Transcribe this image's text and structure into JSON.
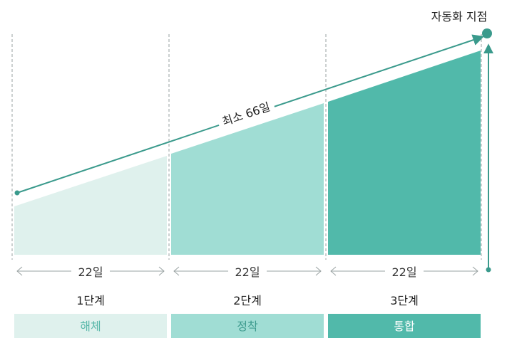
{
  "endpoint_label": "자동화 지점",
  "arrow_label": "최소 66일",
  "stages": [
    {
      "duration": "22일",
      "step": "1단계",
      "name": "해체"
    },
    {
      "duration": "22일",
      "step": "2단계",
      "name": "정착"
    },
    {
      "duration": "22일",
      "step": "3단계",
      "name": "통합"
    }
  ],
  "colors": {
    "stage1_fill": "#dff1ed",
    "stage2_fill": "#a0ddd4",
    "stage3_fill": "#51b9aa",
    "arrow": "#3a9a8c",
    "label_stage1_text": "#5ab8aa",
    "label_stage2_text": "#3c9a8d",
    "label_stage3_text": "#ffffff"
  }
}
